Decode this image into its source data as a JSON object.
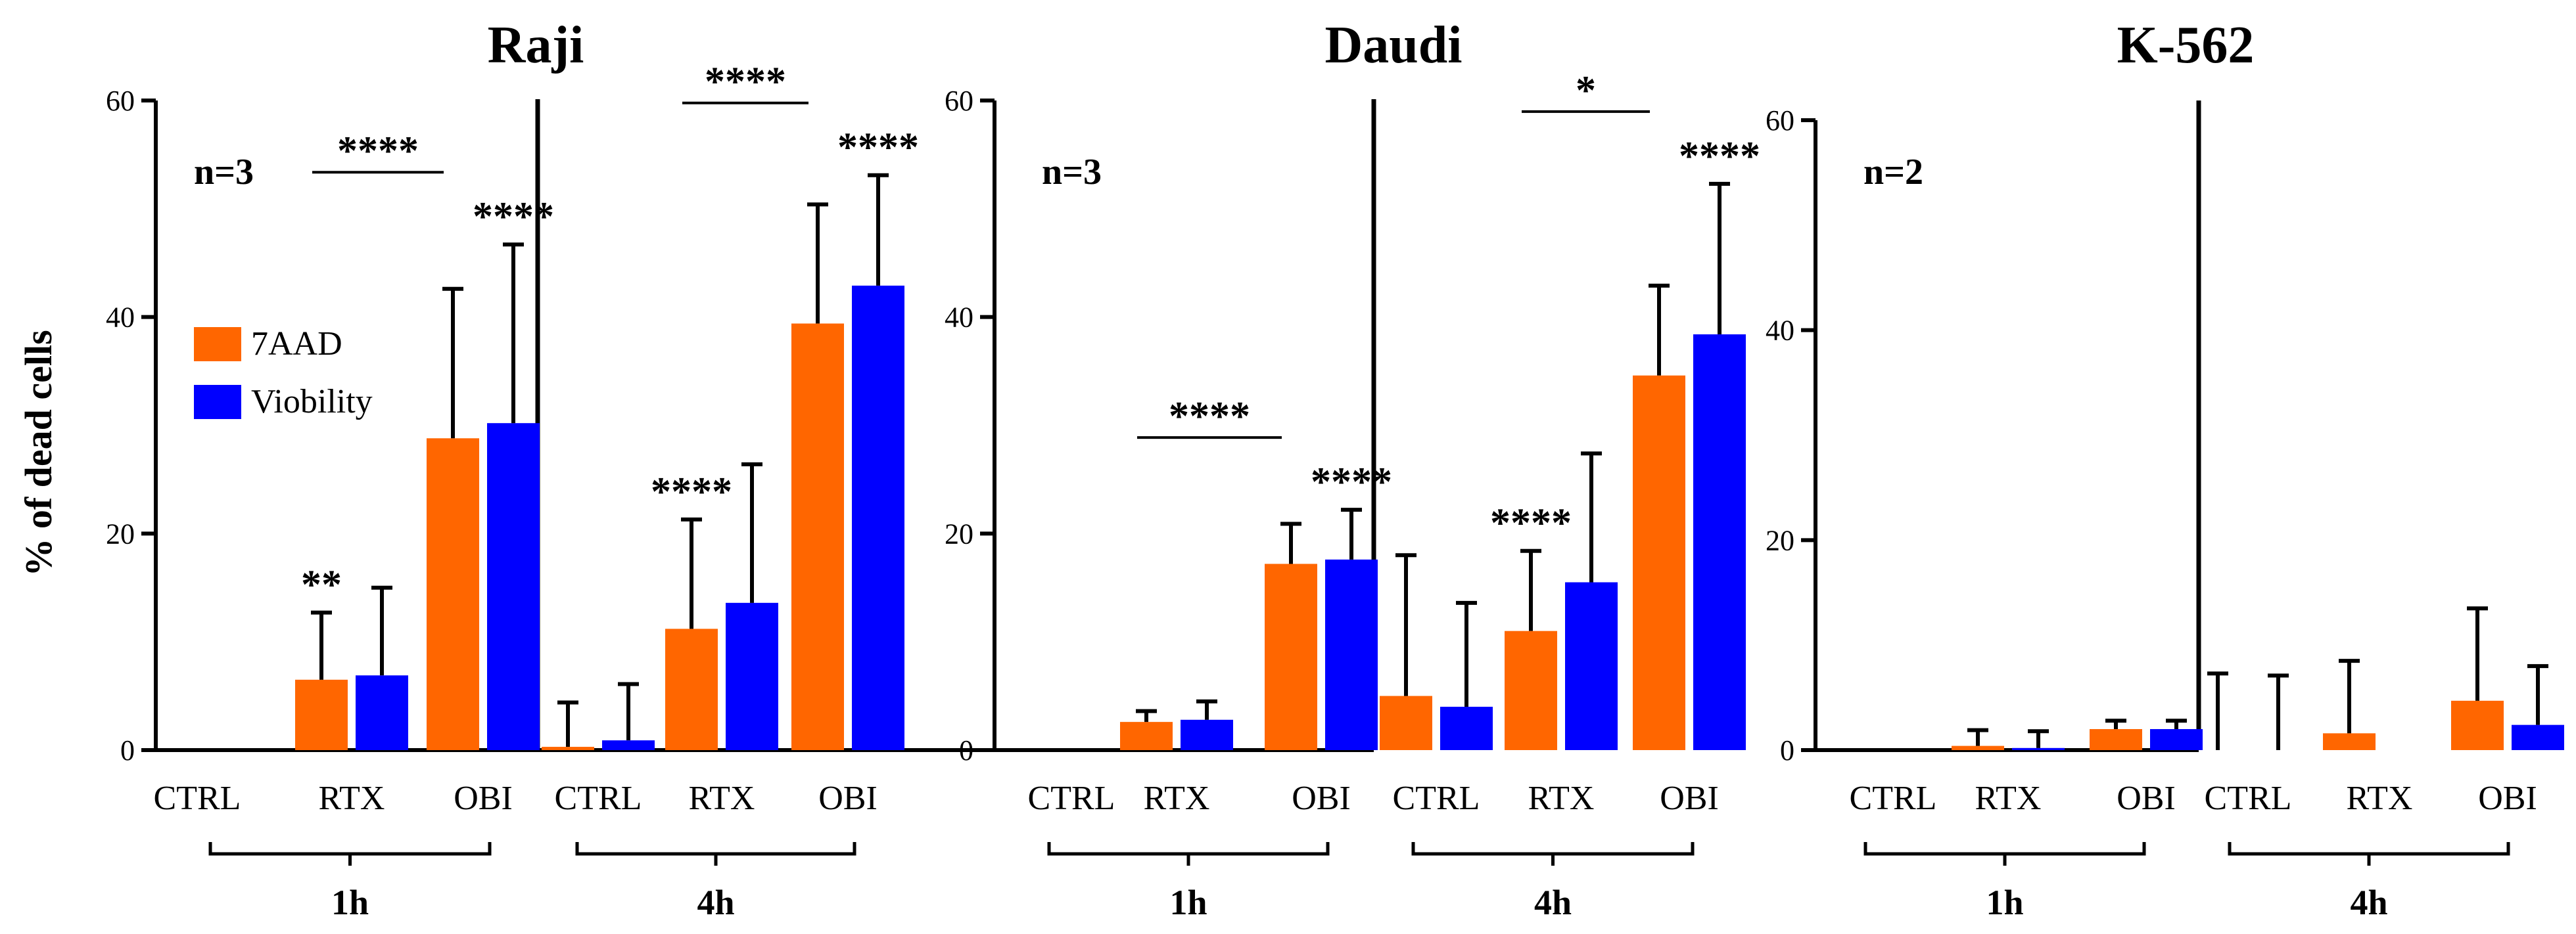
{
  "colors": {
    "7AAD": "#ff6600",
    "Viobility": "#0000ff",
    "axis": "#000000"
  },
  "ylabel": "% of dead cells",
  "legend": [
    {
      "name": "7AAD",
      "color": "#ff6600"
    },
    {
      "name": "Viobility",
      "color": "#0000ff"
    }
  ],
  "chart_data": [
    {
      "type": "bar",
      "title": "Raji",
      "n_label": "n=3",
      "ylim": [
        0,
        60
      ],
      "yticks": [
        0,
        20,
        40,
        60
      ],
      "groups": [
        {
          "label": "1h",
          "categories": [
            "CTRL",
            "RTX",
            "OBI"
          ],
          "series": [
            {
              "name": "7AAD",
              "values": [
                0,
                6.5,
                28.8
              ],
              "errors": [
                0,
                6.2,
                13.8
              ],
              "stars": [
                "",
                "**",
                ""
              ]
            },
            {
              "name": "Viobility",
              "values": [
                0,
                6.9,
                30.2
              ],
              "errors": [
                0,
                8.1,
                16.5
              ],
              "stars": [
                "",
                "",
                "****"
              ]
            }
          ],
          "brackets": [
            {
              "label": "****",
              "from": "RTX",
              "to": "OBI"
            }
          ]
        },
        {
          "label": "4h",
          "categories": [
            "CTRL",
            "RTX",
            "OBI"
          ],
          "series": [
            {
              "name": "7AAD",
              "values": [
                0.3,
                11.2,
                39.4
              ],
              "errors": [
                4.1,
                10.1,
                11.0
              ],
              "stars": [
                "",
                "****",
                ""
              ]
            },
            {
              "name": "Viobility",
              "values": [
                0.9,
                13.6,
                42.9
              ],
              "errors": [
                5.2,
                12.8,
                10.2
              ],
              "stars": [
                "",
                "",
                "****"
              ]
            }
          ],
          "brackets": [
            {
              "label": "****",
              "from": "RTX",
              "to": "OBI"
            }
          ]
        }
      ]
    },
    {
      "type": "bar",
      "title": "Daudi",
      "n_label": "n=3",
      "ylim": [
        0,
        60
      ],
      "yticks": [
        0,
        20,
        40,
        60
      ],
      "groups": [
        {
          "label": "1h",
          "categories": [
            "CTRL",
            "RTX",
            "OBI"
          ],
          "series": [
            {
              "name": "7AAD",
              "values": [
                0,
                2.6,
                17.2
              ],
              "errors": [
                0,
                1.0,
                3.7
              ],
              "stars": [
                "",
                "",
                ""
              ]
            },
            {
              "name": "Viobility",
              "values": [
                0,
                2.8,
                17.6
              ],
              "errors": [
                0,
                1.7,
                4.6
              ],
              "stars": [
                "",
                "",
                "****"
              ]
            }
          ],
          "brackets": [
            {
              "label": "****",
              "from": "RTX",
              "to": "OBI"
            }
          ]
        },
        {
          "label": "4h",
          "categories": [
            "CTRL",
            "RTX",
            "OBI"
          ],
          "series": [
            {
              "name": "7AAD",
              "values": [
                5.0,
                11.0,
                34.6
              ],
              "errors": [
                13.0,
                7.4,
                8.3
              ],
              "stars": [
                "",
                "****",
                ""
              ]
            },
            {
              "name": "Viobility",
              "values": [
                4.0,
                15.5,
                38.4
              ],
              "errors": [
                9.6,
                11.9,
                13.9
              ],
              "stars": [
                "",
                "",
                "****"
              ]
            }
          ],
          "brackets": [
            {
              "label": "*",
              "from": "RTX",
              "to": "OBI"
            }
          ]
        }
      ]
    },
    {
      "type": "bar",
      "title": "K-562",
      "n_label": "n=2",
      "ylim": [
        0,
        60
      ],
      "yticks": [
        0,
        20,
        40,
        60
      ],
      "groups": [
        {
          "label": "1h",
          "categories": [
            "CTRL",
            "RTX",
            "OBI"
          ],
          "series": [
            {
              "name": "7AAD",
              "values": [
                0,
                0.4,
                2.0
              ],
              "errors": [
                0,
                1.5,
                0.8
              ],
              "stars": [
                "",
                "",
                ""
              ]
            },
            {
              "name": "Viobility",
              "values": [
                0,
                0.2,
                2.0
              ],
              "errors": [
                0,
                1.6,
                0.8
              ],
              "stars": [
                "",
                "",
                ""
              ]
            }
          ],
          "brackets": []
        },
        {
          "label": "4h",
          "categories": [
            "CTRL",
            "RTX",
            "OBI"
          ],
          "series": [
            {
              "name": "7AAD",
              "values": [
                0,
                1.6,
                4.7
              ],
              "errors": [
                7.3,
                6.9,
                8.8
              ],
              "stars": [
                "",
                "",
                ""
              ]
            },
            {
              "name": "Viobility",
              "values": [
                0,
                0,
                2.4
              ],
              "errors": [
                7.1,
                0,
                5.6
              ],
              "stars": [
                "",
                "",
                ""
              ]
            }
          ],
          "brackets": []
        }
      ]
    }
  ]
}
